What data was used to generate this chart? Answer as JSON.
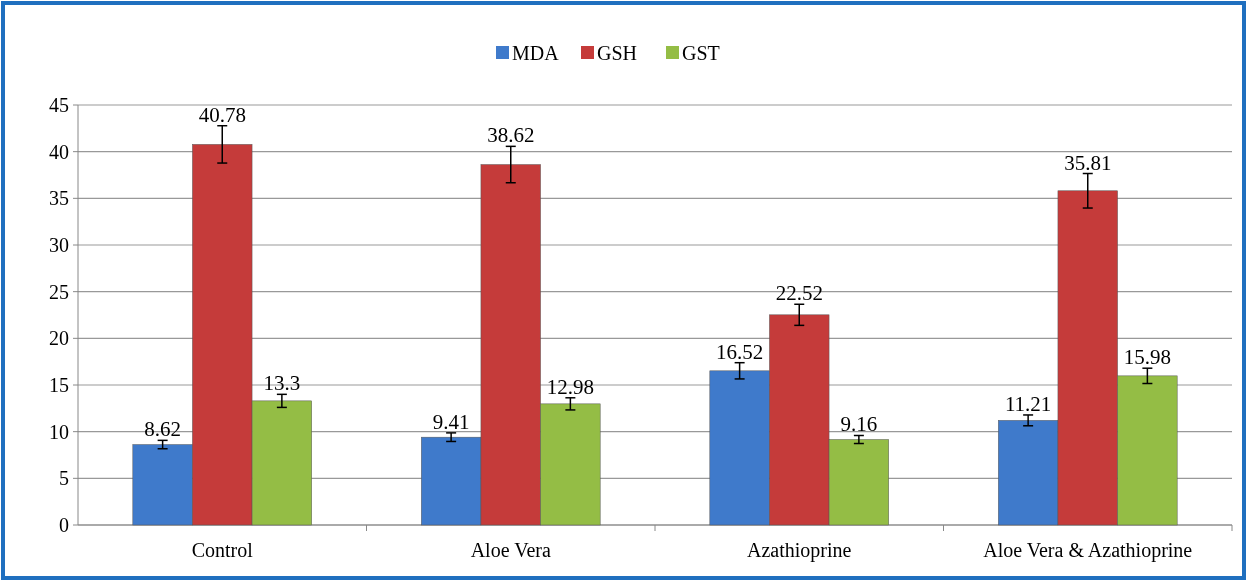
{
  "chart_data": {
    "type": "bar",
    "categories": [
      "Control",
      "Aloe Vera",
      "Azathioprine",
      "Aloe Vera & Azathioprine"
    ],
    "series": [
      {
        "name": "MDA",
        "color": "#3f7acb",
        "values": [
          8.62,
          9.41,
          16.52,
          11.21
        ],
        "errors": [
          0.45,
          0.46,
          0.87,
          0.58
        ]
      },
      {
        "name": "GSH",
        "color": "#c53b3a",
        "values": [
          40.78,
          38.62,
          22.52,
          35.81
        ],
        "errors": [
          2.0,
          1.95,
          1.13,
          1.85
        ]
      },
      {
        "name": "GST",
        "color": "#94bd45",
        "values": [
          13.3,
          12.98,
          9.16,
          15.98
        ],
        "errors": [
          0.7,
          0.65,
          0.43,
          0.82
        ]
      }
    ],
    "ylim": [
      0,
      45
    ],
    "yticks": [
      0,
      5,
      10,
      15,
      20,
      25,
      30,
      35,
      40,
      45
    ],
    "grid": "y",
    "legend": "top",
    "data_labels": true
  }
}
